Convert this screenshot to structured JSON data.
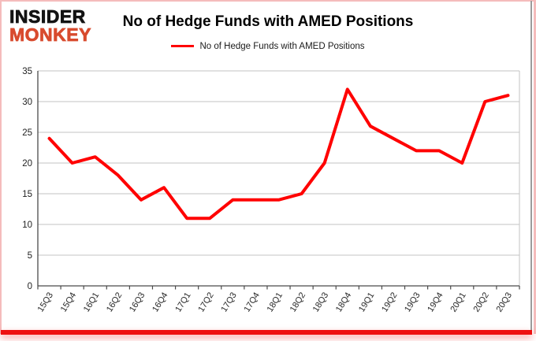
{
  "logo": {
    "line1": "INSIDER",
    "line2": "MONKEY"
  },
  "chart_data": {
    "type": "line",
    "title": "No of Hedge Funds with AMED Positions",
    "legend": "No of Hedge Funds with AMED Positions",
    "categories": [
      "15Q3",
      "15Q4",
      "16Q1",
      "16Q2",
      "16Q3",
      "16Q4",
      "17Q1",
      "17Q2",
      "17Q3",
      "17Q4",
      "18Q1",
      "18Q2",
      "18Q3",
      "18Q4",
      "19Q1",
      "19Q2",
      "19Q3",
      "19Q4",
      "20Q1",
      "20Q2",
      "20Q3"
    ],
    "values": [
      24,
      20,
      21,
      18,
      14,
      16,
      11,
      11,
      14,
      14,
      14,
      15,
      20,
      32,
      26,
      24,
      22,
      22,
      20,
      30,
      31
    ],
    "ylim": [
      0,
      35
    ],
    "ytick_step": 5,
    "xlabel": "",
    "ylabel": "",
    "grid": true,
    "legend_position": "top-center",
    "colors": {
      "line": "#ff0000",
      "grid": "#c3c3c3",
      "axis": "#4a4a4a",
      "tick_label": "#262626",
      "title": "#000000",
      "logo_black": "#131313",
      "logo_red": "#d84b2e",
      "frame_pink": "#f5bcbc",
      "bottom_bar": "#ee1111",
      "right_edge_gray": "#9b9b9b"
    }
  }
}
